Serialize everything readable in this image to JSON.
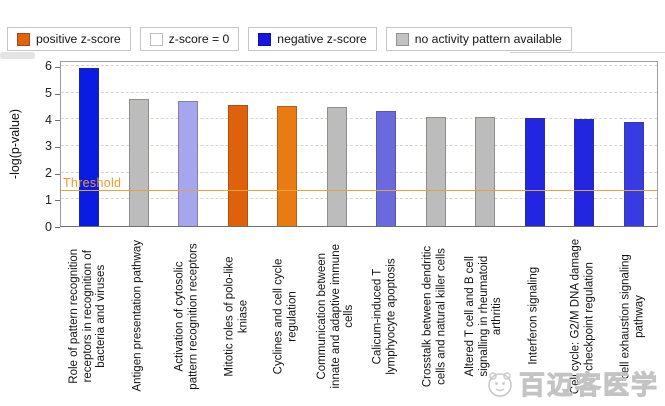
{
  "legend": {
    "items": [
      {
        "label": "positive z-score",
        "color": "#e2620d"
      },
      {
        "label": "z-score = 0",
        "color": "#ffffff"
      },
      {
        "label": "negative z-score",
        "color": "#1717dd"
      },
      {
        "label": "no activity pattern available",
        "color": "#c2c2c2"
      }
    ]
  },
  "chart_data": {
    "type": "bar",
    "title": "",
    "xlabel": "",
    "ylabel": "-log(p-value)",
    "ylim": [
      0,
      6
    ],
    "yticks": [
      0,
      1,
      2,
      3,
      4,
      5,
      6
    ],
    "grid": "horizontal-dashed",
    "legend_position": "top",
    "threshold": {
      "label": "Threshold",
      "value": 1.3,
      "line_color": "#e9a239",
      "text_color": "#f09a28"
    },
    "categories": [
      "Role of pattern recognition\nreceptors in recognition of\nbacteria and viruses",
      "Antigen presentation pathway",
      "Activation of cytosolic\npattern recognition receptors",
      "Mitotic roles of polo-like\nkniase",
      "Cyclines and cell cycle\nregulation",
      "Communication between\ninnate and adaptive immune\ncells",
      "Calicum-induced T\nlymphyocyte apoptosis",
      "Crosstalk between dendritic\ncells and natural killer cells",
      "Altered T cell and B cell\nsignalling in rheumatoid\narthritis",
      "Interferon signaling",
      "Cell cycle: G2/M DNA damage\ncheckpoint regulation",
      "cell exhaustion signaling\npathway"
    ],
    "values": [
      5.9,
      4.75,
      4.7,
      4.55,
      4.5,
      4.45,
      4.3,
      4.1,
      4.1,
      4.05,
      4.0,
      3.9
    ],
    "z_score_class": [
      "negative",
      "no-activity",
      "negative",
      "positive",
      "positive",
      "no-activity",
      "negative",
      "no-activity",
      "no-activity",
      "negative",
      "negative",
      "negative"
    ],
    "bar_colors": [
      "#0b1ce2",
      "#bcbcbc",
      "#a6a6ee",
      "#df610b",
      "#e97a14",
      "#bcbcbc",
      "#6a6ade",
      "#bcbcbc",
      "#bcbcbc",
      "#2326e0",
      "#2326e0",
      "#383be2"
    ]
  },
  "watermark": {
    "text": "百迈客医学"
  }
}
